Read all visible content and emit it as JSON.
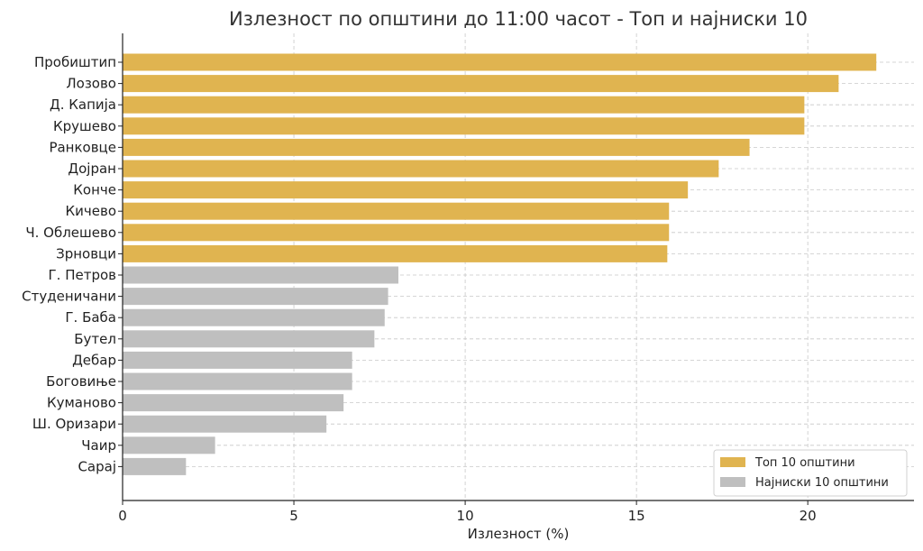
{
  "chart_data": {
    "type": "bar",
    "orientation": "horizontal",
    "title": "Излезност по општини до 11:00 часот - Топ и најниски 10",
    "xlabel": "Излезност (%)",
    "ylabel": "",
    "xlim": [
      0,
      23.1
    ],
    "xticks": [
      0,
      5,
      10,
      15,
      20
    ],
    "grid": true,
    "legend_position": "bottom-right",
    "series": [
      {
        "name": "Топ 10 општини",
        "color": "#e0b450",
        "categories": [
          "Пробиштип",
          "Лозово",
          "Д. Капија",
          "Крушево",
          "Ранковце",
          "Дојран",
          "Конче",
          "Кичево",
          "Ч. Облешево",
          "Зрновци"
        ],
        "values": [
          22.0,
          20.9,
          19.9,
          19.9,
          18.3,
          17.4,
          16.5,
          15.95,
          15.95,
          15.9
        ]
      },
      {
        "name": "Најниски 10 општини",
        "color": "#bfbfbf",
        "categories": [
          "Г. Петров",
          "Студеничани",
          "Г. Баба",
          "Бутел",
          "Дебар",
          "Боговиње",
          "Куманово",
          "Ш. Оризари",
          "Чаир",
          "Сарај"
        ],
        "values": [
          8.05,
          7.75,
          7.65,
          7.35,
          6.7,
          6.7,
          6.45,
          5.95,
          2.7,
          1.85
        ]
      }
    ]
  }
}
